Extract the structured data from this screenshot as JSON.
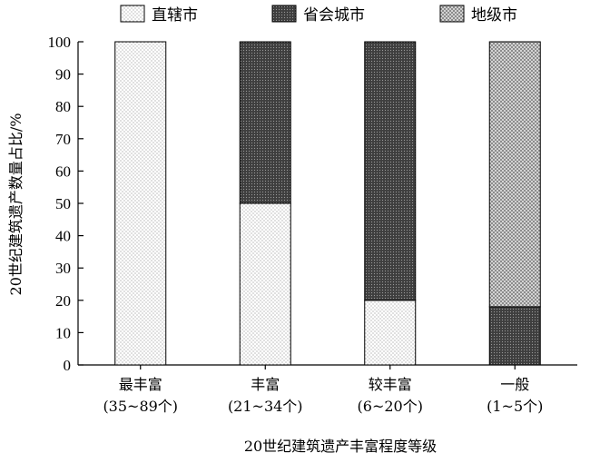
{
  "chart_data": {
    "type": "bar",
    "stacked": true,
    "categories": [
      "最丰富",
      "丰富",
      "较丰富",
      "一般"
    ],
    "category_sublabels": [
      "(35~89个)",
      "(21~34个)",
      "(6~20个)",
      "(1~5个)"
    ],
    "series": [
      {
        "name": "直辖市",
        "values": [
          100,
          50,
          20,
          0
        ],
        "pattern": "dots",
        "color": "#ffffff"
      },
      {
        "name": "省会城市",
        "values": [
          0,
          50,
          80,
          18
        ],
        "pattern": "dark-dots",
        "color": "#555555"
      },
      {
        "name": "地级市",
        "values": [
          0,
          0,
          0,
          82
        ],
        "pattern": "crosshatch",
        "color": "#bbbbbb"
      }
    ],
    "xlabel": "20世纪建筑遗产丰富程度等级",
    "ylabel": "20世纪建筑遗产数量占比/%",
    "ylim": [
      0,
      100
    ],
    "yticks": [
      0,
      10,
      20,
      30,
      40,
      50,
      60,
      70,
      80,
      90,
      100
    ],
    "grid": false,
    "legend_position": "top"
  }
}
